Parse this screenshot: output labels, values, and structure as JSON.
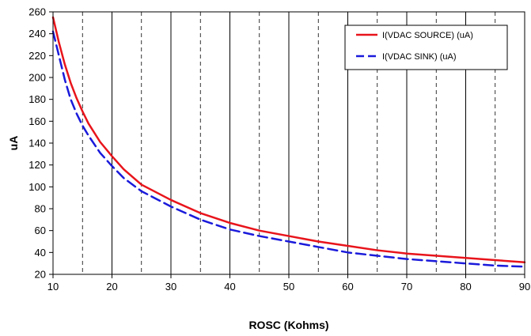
{
  "chart_data": {
    "type": "line",
    "title": "",
    "xlabel": "ROSC (Kohms)",
    "ylabel": "uA",
    "xlim": [
      10,
      90
    ],
    "ylim": [
      20,
      260
    ],
    "x_ticks": [
      10,
      20,
      30,
      40,
      50,
      60,
      70,
      80,
      90
    ],
    "y_ticks": [
      20,
      40,
      60,
      80,
      100,
      120,
      140,
      160,
      180,
      200,
      220,
      240,
      260
    ],
    "x_tick_labels": [
      "10",
      "20",
      "30",
      "40",
      "50",
      "60",
      "70",
      "80",
      "90"
    ],
    "y_tick_labels": [
      "20",
      "40",
      "60",
      "80",
      "100",
      "120",
      "140",
      "160",
      "180",
      "200",
      "220",
      "240",
      "260"
    ],
    "grid": {
      "major_x": [
        20,
        30,
        40,
        50,
        60,
        70,
        80
      ],
      "minor_x_dashed": [
        15,
        25,
        35,
        45,
        55,
        65,
        75,
        85
      ],
      "horizontal": false
    },
    "legend": "top-right",
    "series": [
      {
        "name": "I(VDAC SOURCE) (uA)",
        "color": "#e8141b",
        "style": "solid",
        "x": [
          10,
          11,
          12,
          13,
          14,
          15,
          16,
          18,
          20,
          22,
          25,
          30,
          35,
          40,
          45,
          50,
          55,
          60,
          65,
          70,
          75,
          80,
          85,
          90
        ],
        "values": [
          255,
          232,
          212,
          195,
          181,
          169,
          158,
          141,
          128,
          116,
          102,
          88,
          76,
          67,
          60,
          55,
          50,
          46,
          42,
          39,
          37,
          35,
          33,
          31
        ]
      },
      {
        "name": "I(VDAC SINK) (uA)",
        "color": "#1a1adb",
        "style": "dashed",
        "x": [
          10,
          11,
          12,
          13,
          14,
          15,
          16,
          18,
          20,
          22,
          25,
          30,
          35,
          40,
          45,
          50,
          55,
          60,
          65,
          70,
          75,
          80,
          85,
          90
        ],
        "values": [
          242,
          220,
          198,
          180,
          167,
          156,
          147,
          131,
          119,
          108,
          96,
          82,
          70,
          61,
          55,
          50,
          45,
          40,
          37,
          34,
          32,
          30,
          28,
          27
        ]
      }
    ]
  }
}
